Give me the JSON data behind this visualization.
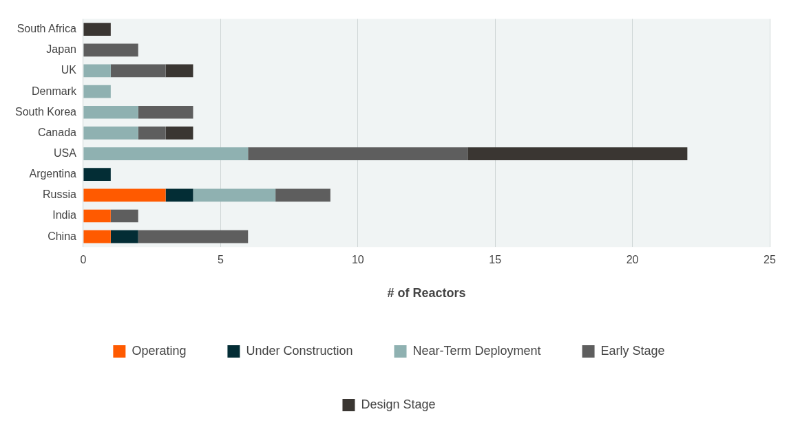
{
  "chart_data": {
    "type": "bar",
    "orientation": "horizontal",
    "stacked": true,
    "xlabel": "# of Reactors",
    "categories": [
      "South Africa",
      "Japan",
      "UK",
      "Denmark",
      "South Korea",
      "Canada",
      "USA",
      "Argentina",
      "Russia",
      "India",
      "China"
    ],
    "series": [
      {
        "name": "Operating",
        "color": "#ff5a00",
        "values": [
          0,
          0,
          0,
          0,
          0,
          0,
          0,
          0,
          3,
          1,
          1
        ]
      },
      {
        "name": "Under Construction",
        "color": "#032d35",
        "values": [
          0,
          0,
          0,
          0,
          0,
          0,
          0,
          1,
          1,
          0,
          1
        ]
      },
      {
        "name": "Near-Term Deployment",
        "color": "#8fb1b1",
        "values": [
          0,
          0,
          1,
          1,
          2,
          2,
          6,
          0,
          3,
          0,
          0
        ]
      },
      {
        "name": "Early Stage",
        "color": "#5e5e5e",
        "values": [
          0,
          2,
          2,
          0,
          2,
          1,
          8,
          0,
          2,
          1,
          4
        ]
      },
      {
        "name": "Design Stage",
        "color": "#3a3632",
        "values": [
          1,
          0,
          1,
          0,
          0,
          1,
          8,
          0,
          0,
          0,
          0
        ]
      }
    ],
    "xlim": [
      0,
      25
    ],
    "xticks": [
      0,
      5,
      10,
      15,
      20,
      25
    ],
    "grid": "x",
    "legend": "bottom"
  }
}
